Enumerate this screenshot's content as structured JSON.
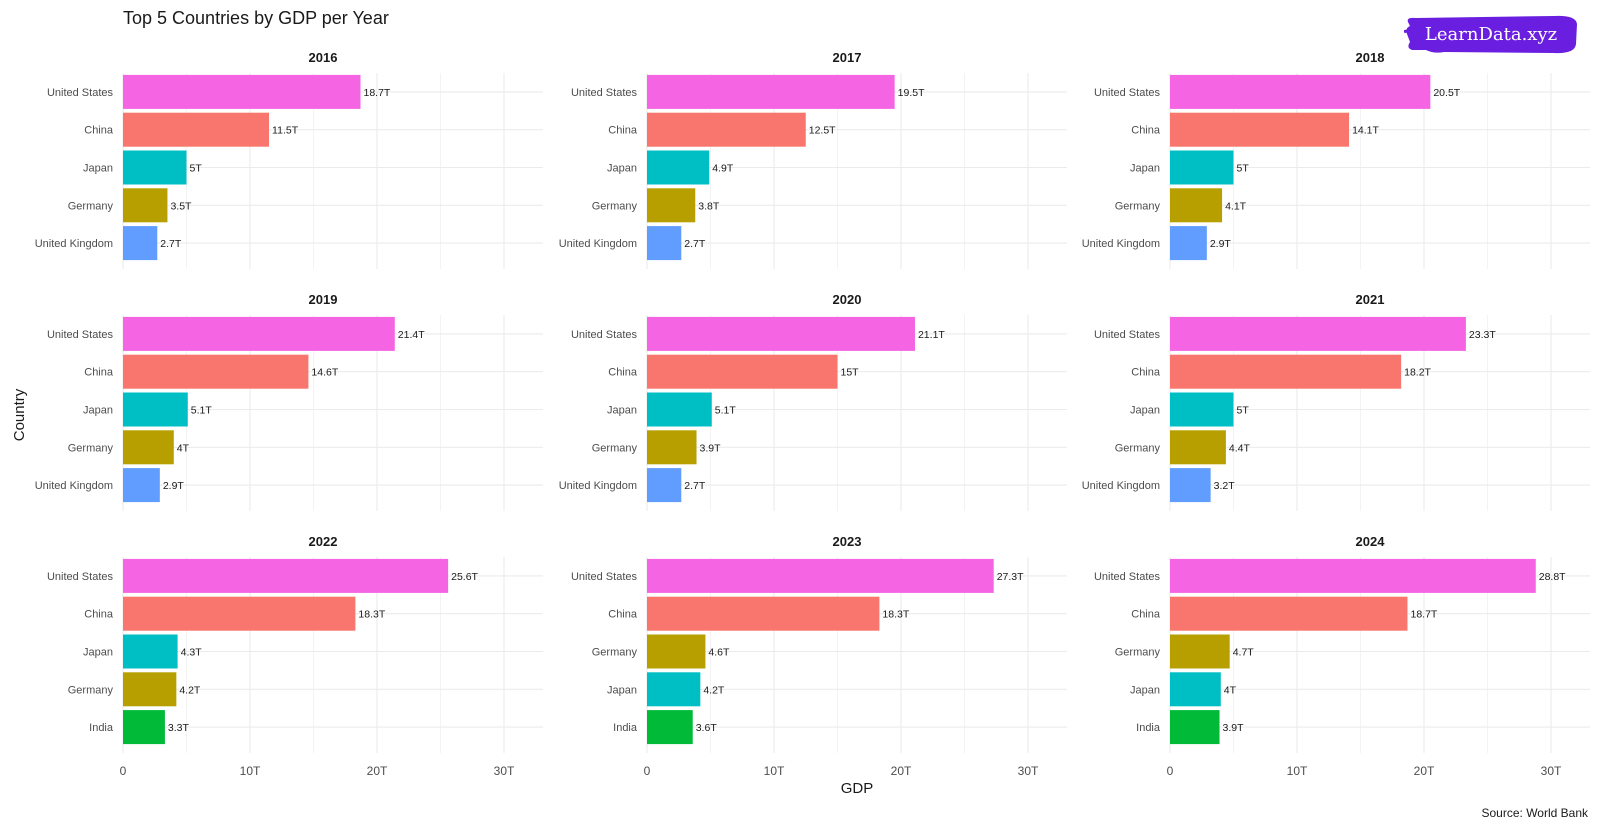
{
  "title": "Top 5 Countries by GDP per Year",
  "caption": "Source: World Bank",
  "logo": {
    "text": "LearnData.xyz",
    "color": "#6a1fe0"
  },
  "colors": {
    "United States": "#f564e3",
    "China": "#f8766d",
    "Japan": "#00bfc4",
    "Germany": "#b79f00",
    "United Kingdom": "#619cff",
    "India": "#00ba38"
  },
  "chart_data": {
    "type": "bar",
    "orientation": "horizontal",
    "xlabel": "GDP",
    "ylabel": "Country",
    "xlim": [
      0,
      33
    ],
    "x_ticks": [
      0,
      10,
      20,
      30
    ],
    "x_tick_labels": [
      "0",
      "10T",
      "20T",
      "30T"
    ],
    "grid": true,
    "facets": [
      {
        "year": "2016",
        "bars": [
          {
            "country": "United States",
            "value": 18.7,
            "label": "18.7T"
          },
          {
            "country": "China",
            "value": 11.5,
            "label": "11.5T"
          },
          {
            "country": "Japan",
            "value": 5.0,
            "label": "5T"
          },
          {
            "country": "Germany",
            "value": 3.5,
            "label": "3.5T"
          },
          {
            "country": "United Kingdom",
            "value": 2.7,
            "label": "2.7T"
          }
        ]
      },
      {
        "year": "2017",
        "bars": [
          {
            "country": "United States",
            "value": 19.5,
            "label": "19.5T"
          },
          {
            "country": "China",
            "value": 12.5,
            "label": "12.5T"
          },
          {
            "country": "Japan",
            "value": 4.9,
            "label": "4.9T"
          },
          {
            "country": "Germany",
            "value": 3.8,
            "label": "3.8T"
          },
          {
            "country": "United Kingdom",
            "value": 2.7,
            "label": "2.7T"
          }
        ]
      },
      {
        "year": "2018",
        "bars": [
          {
            "country": "United States",
            "value": 20.5,
            "label": "20.5T"
          },
          {
            "country": "China",
            "value": 14.1,
            "label": "14.1T"
          },
          {
            "country": "Japan",
            "value": 5.0,
            "label": "5T"
          },
          {
            "country": "Germany",
            "value": 4.1,
            "label": "4.1T"
          },
          {
            "country": "United Kingdom",
            "value": 2.9,
            "label": "2.9T"
          }
        ]
      },
      {
        "year": "2019",
        "bars": [
          {
            "country": "United States",
            "value": 21.4,
            "label": "21.4T"
          },
          {
            "country": "China",
            "value": 14.6,
            "label": "14.6T"
          },
          {
            "country": "Japan",
            "value": 5.1,
            "label": "5.1T"
          },
          {
            "country": "Germany",
            "value": 4.0,
            "label": "4T"
          },
          {
            "country": "United Kingdom",
            "value": 2.9,
            "label": "2.9T"
          }
        ]
      },
      {
        "year": "2020",
        "bars": [
          {
            "country": "United States",
            "value": 21.1,
            "label": "21.1T"
          },
          {
            "country": "China",
            "value": 15.0,
            "label": "15T"
          },
          {
            "country": "Japan",
            "value": 5.1,
            "label": "5.1T"
          },
          {
            "country": "Germany",
            "value": 3.9,
            "label": "3.9T"
          },
          {
            "country": "United Kingdom",
            "value": 2.7,
            "label": "2.7T"
          }
        ]
      },
      {
        "year": "2021",
        "bars": [
          {
            "country": "United States",
            "value": 23.3,
            "label": "23.3T"
          },
          {
            "country": "China",
            "value": 18.2,
            "label": "18.2T"
          },
          {
            "country": "Japan",
            "value": 5.0,
            "label": "5T"
          },
          {
            "country": "Germany",
            "value": 4.4,
            "label": "4.4T"
          },
          {
            "country": "United Kingdom",
            "value": 3.2,
            "label": "3.2T"
          }
        ]
      },
      {
        "year": "2022",
        "bars": [
          {
            "country": "United States",
            "value": 25.6,
            "label": "25.6T"
          },
          {
            "country": "China",
            "value": 18.3,
            "label": "18.3T"
          },
          {
            "country": "Japan",
            "value": 4.3,
            "label": "4.3T"
          },
          {
            "country": "Germany",
            "value": 4.2,
            "label": "4.2T"
          },
          {
            "country": "India",
            "value": 3.3,
            "label": "3.3T"
          }
        ]
      },
      {
        "year": "2023",
        "bars": [
          {
            "country": "United States",
            "value": 27.3,
            "label": "27.3T"
          },
          {
            "country": "China",
            "value": 18.3,
            "label": "18.3T"
          },
          {
            "country": "Germany",
            "value": 4.6,
            "label": "4.6T"
          },
          {
            "country": "Japan",
            "value": 4.2,
            "label": "4.2T"
          },
          {
            "country": "India",
            "value": 3.6,
            "label": "3.6T"
          }
        ]
      },
      {
        "year": "2024",
        "bars": [
          {
            "country": "United States",
            "value": 28.8,
            "label": "28.8T"
          },
          {
            "country": "China",
            "value": 18.7,
            "label": "18.7T"
          },
          {
            "country": "Germany",
            "value": 4.7,
            "label": "4.7T"
          },
          {
            "country": "Japan",
            "value": 4.0,
            "label": "4T"
          },
          {
            "country": "India",
            "value": 3.9,
            "label": "3.9T"
          }
        ]
      }
    ]
  }
}
